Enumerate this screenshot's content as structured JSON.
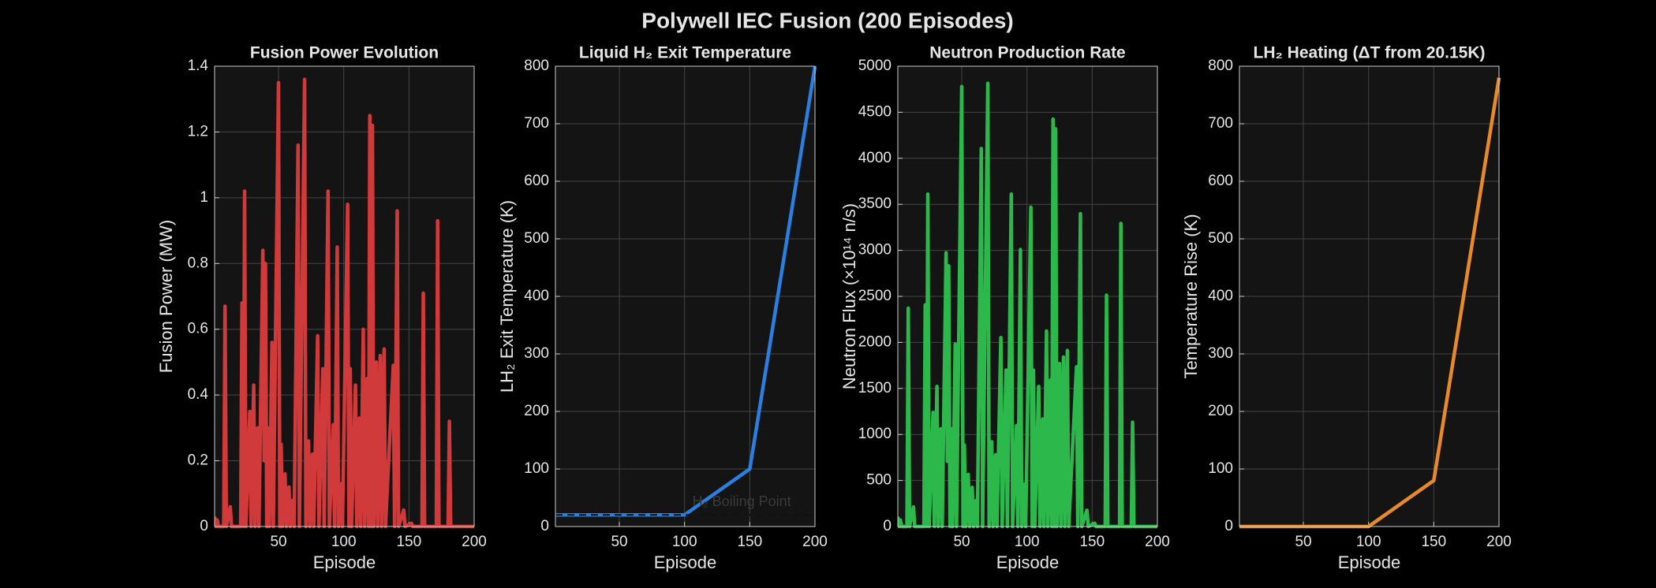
{
  "title": "Polywell IEC Fusion (200 Episodes)",
  "chart_data": [
    {
      "type": "line",
      "title": "Fusion Power Evolution",
      "xlabel": "Episode",
      "ylabel": "Fusion Power (MW)",
      "xlim": [
        1,
        200
      ],
      "xticks": [
        50,
        100,
        150,
        200
      ],
      "ylim": [
        0,
        1.4
      ],
      "yticks": [
        0,
        0.2,
        0.4,
        0.6,
        0.8,
        1,
        1.2,
        1.4
      ],
      "grid": true,
      "color": "#d13a3a",
      "x": [
        1,
        2,
        3,
        4,
        8,
        9,
        10,
        13,
        14,
        21,
        22,
        23,
        24,
        25,
        28,
        29,
        31,
        32,
        34,
        35,
        38,
        39,
        40,
        41,
        42,
        43,
        45,
        46,
        50,
        51,
        52,
        53,
        55,
        56,
        58,
        59,
        61,
        62,
        65,
        66,
        70,
        71,
        73,
        74,
        76,
        77,
        80,
        81,
        84,
        85,
        88,
        89,
        92,
        93,
        95,
        96,
        98,
        99,
        103,
        104,
        105,
        106,
        109,
        110,
        112,
        113,
        115,
        116,
        118,
        119,
        120,
        121,
        122,
        123,
        125,
        126,
        128,
        129,
        131,
        132,
        138,
        139,
        141,
        142,
        146,
        147,
        152,
        153,
        160,
        161,
        162,
        171,
        172,
        173,
        180,
        181,
        182,
        200
      ],
      "values": [
        0.03,
        0,
        0.02,
        0,
        0,
        0.67,
        0,
        0.06,
        0,
        0,
        0.68,
        0,
        1.02,
        0,
        0.35,
        0,
        0.43,
        0,
        0.3,
        0,
        0.84,
        0.2,
        0.8,
        0,
        0.3,
        0,
        0.56,
        0,
        1.35,
        0,
        0.25,
        0,
        0.16,
        0,
        0.12,
        0,
        0.08,
        0,
        1.16,
        0,
        1.36,
        0,
        0.26,
        0,
        0.22,
        0,
        0.58,
        0,
        0.48,
        0,
        1.02,
        0,
        0.31,
        0,
        0.85,
        0,
        0.13,
        0,
        0.98,
        0,
        0.48,
        0,
        0.43,
        0,
        0.33,
        0,
        0.6,
        0,
        0.45,
        0,
        1.25,
        0,
        1.22,
        0,
        0.5,
        0,
        0.52,
        0,
        0.54,
        0,
        0.49,
        0,
        0.96,
        0,
        0.05,
        0,
        0.01,
        0,
        0,
        0.71,
        0,
        0,
        0.93,
        0,
        0,
        0.32,
        0,
        0
      ]
    },
    {
      "type": "line",
      "title": "Liquid H₂ Exit Temperature",
      "xlabel": "Episode",
      "ylabel": "LH₂ Exit Temperature (K)",
      "xlim": [
        1,
        200
      ],
      "xticks": [
        50,
        100,
        150,
        200
      ],
      "ylim": [
        0,
        800
      ],
      "yticks": [
        0,
        100,
        200,
        300,
        400,
        500,
        600,
        700,
        800
      ],
      "grid": true,
      "color": "#2a7fe0",
      "x": [
        1,
        100,
        150,
        200
      ],
      "values": [
        20.15,
        20.15,
        100,
        800
      ],
      "reference_lines": [
        {
          "value": 20.28,
          "label": "H₂ Boiling Point"
        }
      ]
    },
    {
      "type": "line",
      "title": "Neutron Production Rate",
      "xlabel": "Episode",
      "ylabel": "Neutron Flux (×10¹⁴ n/s)",
      "xlim": [
        1,
        200
      ],
      "xticks": [
        50,
        100,
        150,
        200
      ],
      "ylim": [
        0,
        5000
      ],
      "yticks": [
        0,
        500,
        1000,
        1500,
        2000,
        2500,
        3000,
        3500,
        4000,
        4500,
        5000
      ],
      "grid": true,
      "color": "#2db84c",
      "x": [
        1,
        2,
        3,
        4,
        8,
        9,
        10,
        13,
        14,
        21,
        22,
        23,
        24,
        25,
        28,
        29,
        31,
        32,
        34,
        35,
        38,
        39,
        40,
        41,
        42,
        43,
        45,
        46,
        50,
        51,
        52,
        53,
        55,
        56,
        58,
        59,
        61,
        62,
        65,
        66,
        70,
        71,
        73,
        74,
        76,
        77,
        80,
        81,
        84,
        85,
        88,
        89,
        92,
        93,
        95,
        96,
        98,
        99,
        103,
        104,
        105,
        106,
        109,
        110,
        112,
        113,
        115,
        116,
        118,
        119,
        120,
        121,
        122,
        123,
        125,
        126,
        128,
        129,
        131,
        132,
        138,
        139,
        141,
        142,
        146,
        147,
        152,
        153,
        160,
        161,
        162,
        171,
        172,
        173,
        180,
        181,
        182,
        200
      ],
      "values": [
        106,
        0,
        71,
        0,
        0,
        2372,
        0,
        212,
        0,
        0,
        2407,
        0,
        3611,
        0,
        1239,
        0,
        1522,
        0,
        1062,
        0,
        2974,
        708,
        2832,
        0,
        1062,
        0,
        1982,
        0,
        4779,
        0,
        885,
        0,
        566,
        0,
        425,
        0,
        283,
        0,
        4106,
        0,
        4814,
        0,
        920,
        0,
        779,
        0,
        2053,
        0,
        1699,
        0,
        3611,
        0,
        1097,
        0,
        3009,
        0,
        460,
        0,
        3469,
        0,
        1699,
        0,
        1522,
        0,
        1168,
        0,
        2124,
        0,
        1593,
        0,
        4425,
        0,
        4319,
        0,
        1770,
        0,
        1841,
        0,
        1912,
        0,
        1735,
        0,
        3398,
        0,
        177,
        0,
        35,
        0,
        0,
        2513,
        0,
        0,
        3292,
        0,
        0,
        1133,
        0,
        0
      ]
    },
    {
      "type": "line",
      "title": "LH₂ Heating (ΔT from 20.15K)",
      "xlabel": "Episode",
      "ylabel": "Temperature Rise (K)",
      "xlim": [
        1,
        200
      ],
      "xticks": [
        50,
        100,
        150,
        200
      ],
      "ylim": [
        0,
        800
      ],
      "yticks": [
        0,
        100,
        200,
        300,
        400,
        500,
        600,
        700,
        800
      ],
      "grid": true,
      "color": "#e88a2a",
      "x": [
        1,
        100,
        150,
        200
      ],
      "values": [
        0,
        0,
        80,
        780
      ]
    }
  ]
}
